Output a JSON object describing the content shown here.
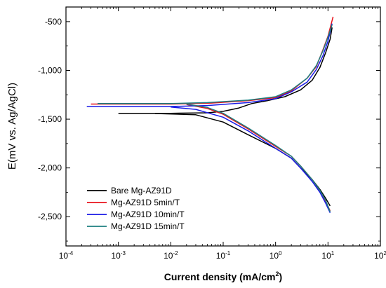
{
  "chart_data": {
    "type": "line",
    "xlabel_main": "Current density (mA/cm",
    "xlabel_sup": "2",
    "xlabel_tail": ")",
    "ylabel": "E(mV vs. Ag/AgCl)",
    "xscale": "log",
    "xlim": [
      0.0001,
      100
    ],
    "ylim": [
      -2800,
      -350
    ],
    "x_ticks": [
      {
        "value": 0.0001,
        "base": "10",
        "exp": "-4"
      },
      {
        "value": 0.001,
        "base": "10",
        "exp": "-3"
      },
      {
        "value": 0.01,
        "base": "10",
        "exp": "-2"
      },
      {
        "value": 0.1,
        "base": "10",
        "exp": "-1"
      },
      {
        "value": 1,
        "base": "10",
        "exp": "0"
      },
      {
        "value": 10,
        "base": "10",
        "exp": "1"
      },
      {
        "value": 100,
        "base": "10",
        "exp": "2"
      }
    ],
    "y_ticks": [
      {
        "value": -500,
        "label": "-500"
      },
      {
        "value": -1000,
        "label": "-1,000"
      },
      {
        "value": -1500,
        "label": "-1,500"
      },
      {
        "value": -2000,
        "label": "-2,000"
      },
      {
        "value": -2500,
        "label": "-2,500"
      }
    ],
    "grid": false,
    "legend_position": "bottom-left",
    "series": [
      {
        "name": "Bare Mg-AZ91D",
        "color": "#000000",
        "anodic": [
          [
            0.001,
            -1440
          ],
          [
            0.01,
            -1440
          ],
          [
            0.05,
            -1435
          ],
          [
            0.1,
            -1420
          ],
          [
            0.2,
            -1385
          ],
          [
            0.35,
            -1340
          ],
          [
            0.7,
            -1310
          ],
          [
            1.5,
            -1270
          ],
          [
            3,
            -1200
          ],
          [
            5,
            -1100
          ],
          [
            7,
            -970
          ],
          [
            9,
            -820
          ],
          [
            11,
            -680
          ],
          [
            12,
            -560
          ]
        ],
        "cathodic": [
          [
            0.005,
            -1442
          ],
          [
            0.03,
            -1455
          ],
          [
            0.1,
            -1530
          ],
          [
            0.3,
            -1660
          ],
          [
            1,
            -1800
          ],
          [
            2,
            -1900
          ],
          [
            3,
            -2000
          ],
          [
            5,
            -2120
          ],
          [
            7,
            -2220
          ],
          [
            9,
            -2310
          ],
          [
            11,
            -2390
          ]
        ]
      },
      {
        "name": "Mg-AZ91D 5min/T",
        "color": "#e8131b",
        "anodic": [
          [
            0.0003,
            -1345
          ],
          [
            0.01,
            -1345
          ],
          [
            0.06,
            -1335
          ],
          [
            0.3,
            -1310
          ],
          [
            1,
            -1280
          ],
          [
            2,
            -1210
          ],
          [
            4,
            -1080
          ],
          [
            6,
            -960
          ],
          [
            8,
            -790
          ],
          [
            10,
            -650
          ],
          [
            12.5,
            -450
          ]
        ],
        "cathodic": [
          [
            0.02,
            -1350
          ],
          [
            0.05,
            -1390
          ],
          [
            0.1,
            -1450
          ],
          [
            0.3,
            -1600
          ],
          [
            1,
            -1780
          ],
          [
            2,
            -1880
          ],
          [
            3,
            -1980
          ],
          [
            5,
            -2120
          ],
          [
            7,
            -2240
          ],
          [
            9,
            -2340
          ],
          [
            11,
            -2440
          ]
        ]
      },
      {
        "name": "Mg-AZ91D 10min/T",
        "color": "#1a1ae6",
        "anodic": [
          [
            0.00025,
            -1370
          ],
          [
            0.01,
            -1370
          ],
          [
            0.05,
            -1360
          ],
          [
            0.3,
            -1330
          ],
          [
            1,
            -1290
          ],
          [
            2,
            -1220
          ],
          [
            4,
            -1120
          ],
          [
            6,
            -990
          ],
          [
            8,
            -850
          ],
          [
            10,
            -700
          ],
          [
            12,
            -520
          ]
        ],
        "cathodic": [
          [
            0.01,
            -1375
          ],
          [
            0.03,
            -1400
          ],
          [
            0.1,
            -1480
          ],
          [
            0.3,
            -1620
          ],
          [
            1,
            -1800
          ],
          [
            2,
            -1900
          ],
          [
            3,
            -2000
          ],
          [
            5,
            -2140
          ],
          [
            7,
            -2250
          ],
          [
            9,
            -2360
          ],
          [
            11,
            -2460
          ]
        ]
      },
      {
        "name": "Mg-AZ91D 15min/T",
        "color": "#1d7f80",
        "anodic": [
          [
            0.0004,
            -1340
          ],
          [
            0.01,
            -1340
          ],
          [
            0.05,
            -1330
          ],
          [
            0.3,
            -1305
          ],
          [
            1,
            -1270
          ],
          [
            2,
            -1200
          ],
          [
            4,
            -1080
          ],
          [
            6,
            -950
          ],
          [
            8,
            -800
          ],
          [
            10,
            -660
          ],
          [
            12,
            -530
          ]
        ],
        "cathodic": [
          [
            0.02,
            -1345
          ],
          [
            0.05,
            -1380
          ],
          [
            0.1,
            -1440
          ],
          [
            0.3,
            -1590
          ],
          [
            1,
            -1770
          ],
          [
            2,
            -1880
          ],
          [
            3,
            -1980
          ],
          [
            5,
            -2120
          ],
          [
            7,
            -2230
          ],
          [
            9,
            -2330
          ],
          [
            11,
            -2450
          ]
        ]
      }
    ]
  }
}
